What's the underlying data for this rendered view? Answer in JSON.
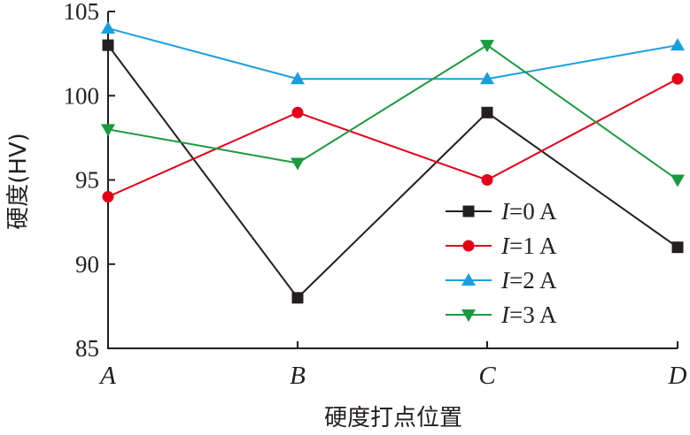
{
  "chart_data": {
    "type": "line",
    "title": "",
    "xlabel": "硬度打点位置",
    "ylabel": "硬度(HV)",
    "categories": [
      "A",
      "B",
      "C",
      "D"
    ],
    "ylim": [
      85,
      105
    ],
    "yticks": [
      85,
      90,
      95,
      100,
      105
    ],
    "grid": false,
    "legend_position": "bottom-right",
    "series": [
      {
        "name": "I=0 A",
        "var": "I",
        "rest": "=0 A",
        "values": [
          103,
          88,
          99,
          91
        ],
        "color": "#231f20",
        "marker": "square"
      },
      {
        "name": "I=1 A",
        "var": "I",
        "rest": "=1 A",
        "values": [
          94,
          99,
          95,
          101
        ],
        "color": "#e50019",
        "marker": "circle"
      },
      {
        "name": "I=2 A",
        "var": "I",
        "rest": "=2 A",
        "values": [
          104,
          101,
          101,
          103
        ],
        "color": "#1a9fde",
        "marker": "triangle-up"
      },
      {
        "name": "I=3 A",
        "var": "I",
        "rest": "=3 A",
        "values": [
          98,
          96,
          103,
          95
        ],
        "color": "#1b9a3f",
        "marker": "triangle-down"
      }
    ]
  }
}
